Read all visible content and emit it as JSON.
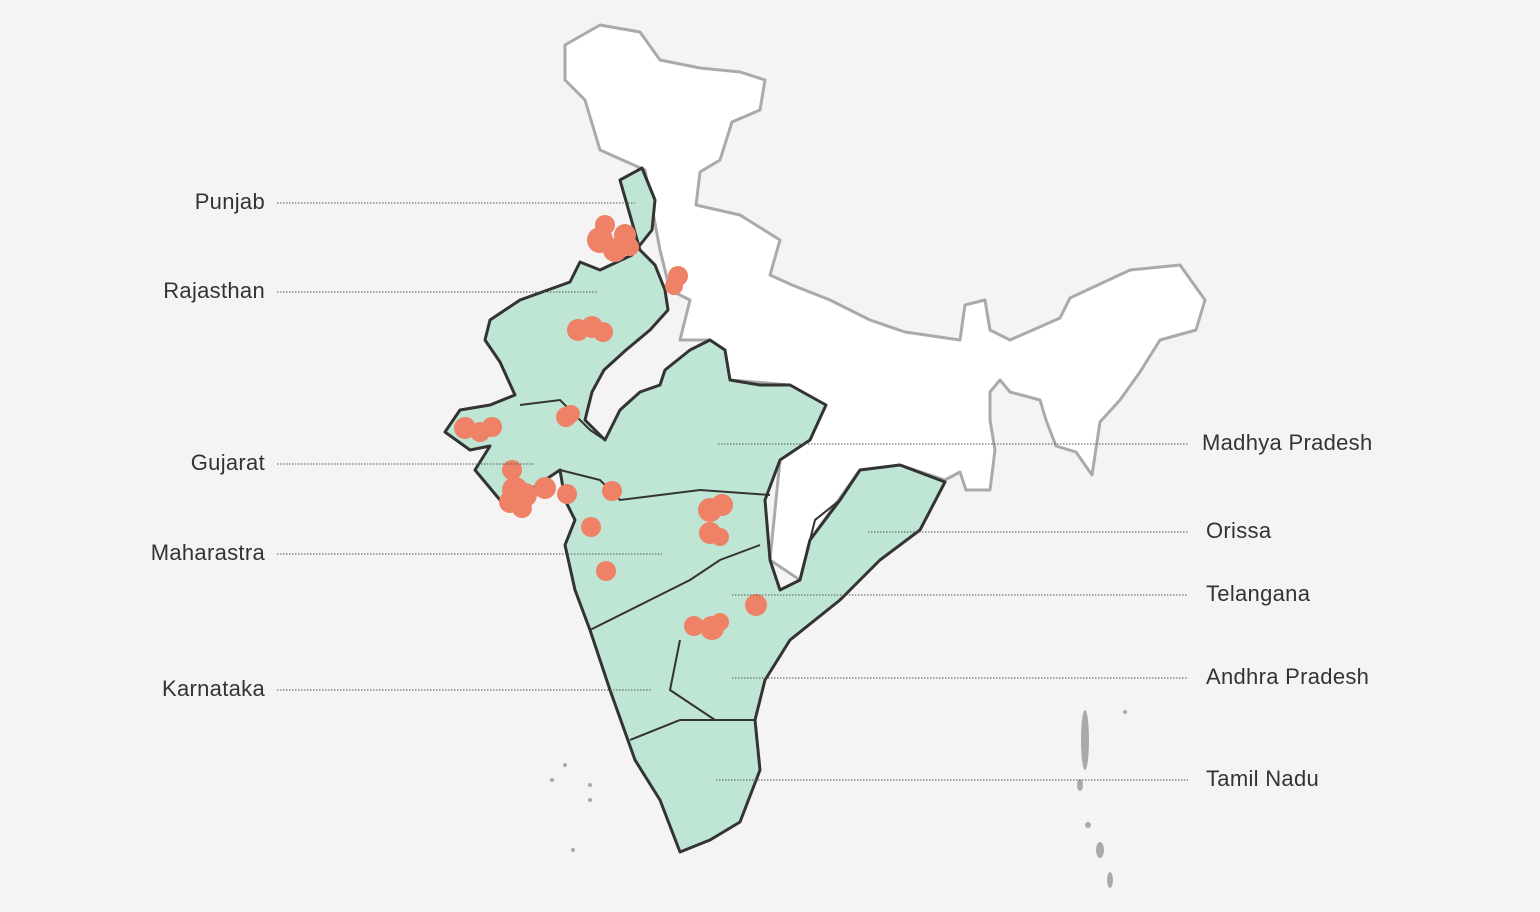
{
  "map": {
    "left_labels": [
      "Punjab",
      "Rajasthan",
      "Gujarat",
      "Maharastra",
      "Karnataka"
    ],
    "right_labels": [
      "Madhya Pradesh",
      "Orissa",
      "Telangana",
      "Andhra Pradesh",
      "Tamil Nadu"
    ]
  }
}
